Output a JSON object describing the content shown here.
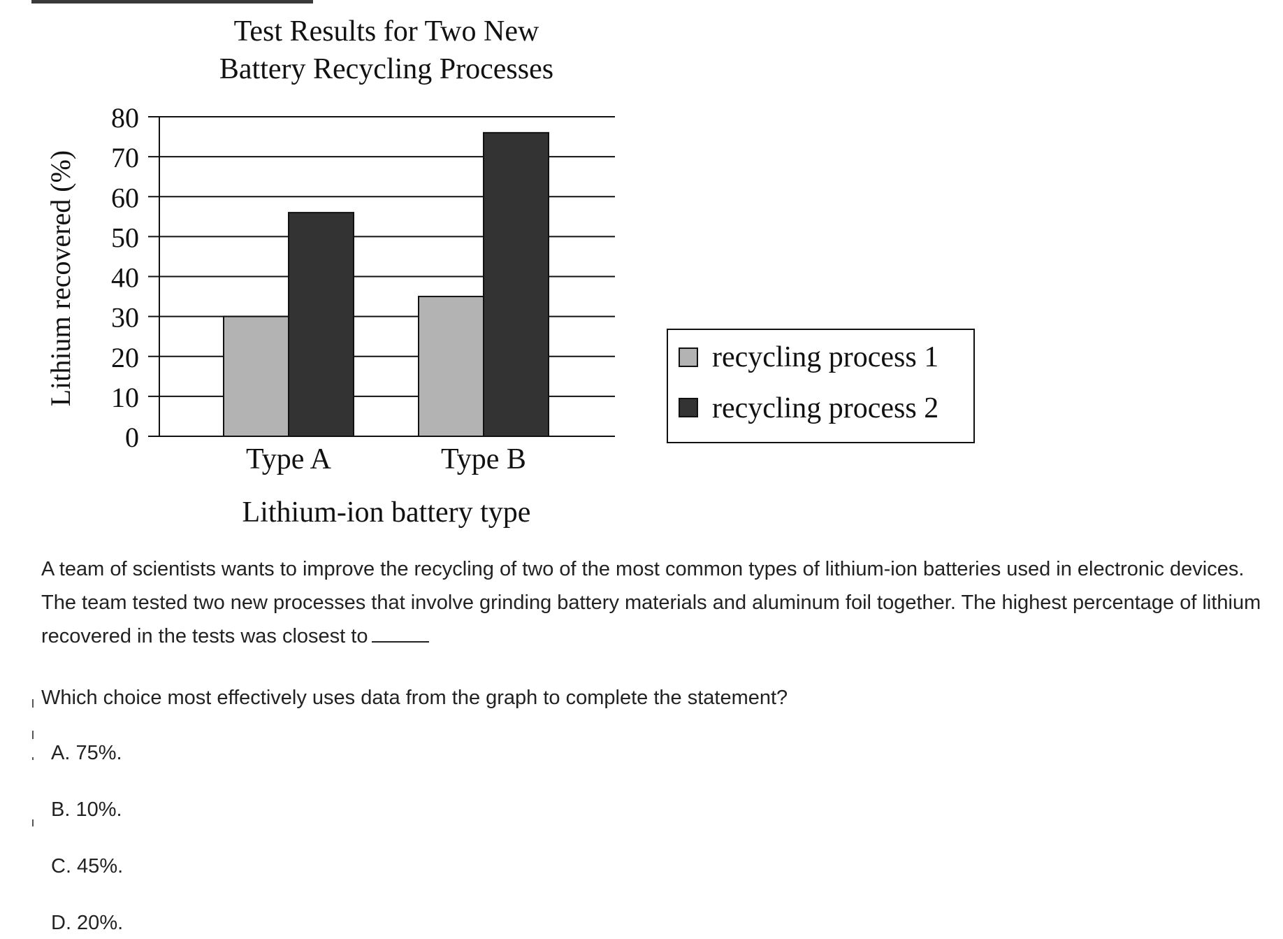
{
  "chart_data": {
    "type": "bar",
    "title": [
      "Test Results for Two New",
      "Battery Recycling Processes"
    ],
    "xlabel": "Lithium-ion battery type",
    "ylabel": "Lithium recovered (%)",
    "categories": [
      "Type A",
      "Type B"
    ],
    "series": [
      {
        "name": "recycling process 1",
        "values": [
          30,
          35
        ],
        "color": "#b3b3b3"
      },
      {
        "name": "recycling process 2",
        "values": [
          56,
          76
        ],
        "color": "#333333"
      }
    ],
    "ylim": [
      0,
      80
    ],
    "yticks": [
      0,
      10,
      20,
      30,
      40,
      50,
      60,
      70,
      80
    ],
    "grid": true,
    "legend_position": "right"
  },
  "passage": {
    "text": "A team of scientists wants to improve the recycling of two of the most common types of lithium-ion batteries used in electronic devices. The team tested two new processes that involve grinding battery materials and aluminum foil together. The highest percentage of lithium recovered in the tests was closest to"
  },
  "question": {
    "prompt": "Which choice most effectively uses data from the graph to complete the statement?",
    "choices": [
      "A. 75%.",
      "B. 10%.",
      "C. 45%.",
      "D. 20%."
    ]
  }
}
